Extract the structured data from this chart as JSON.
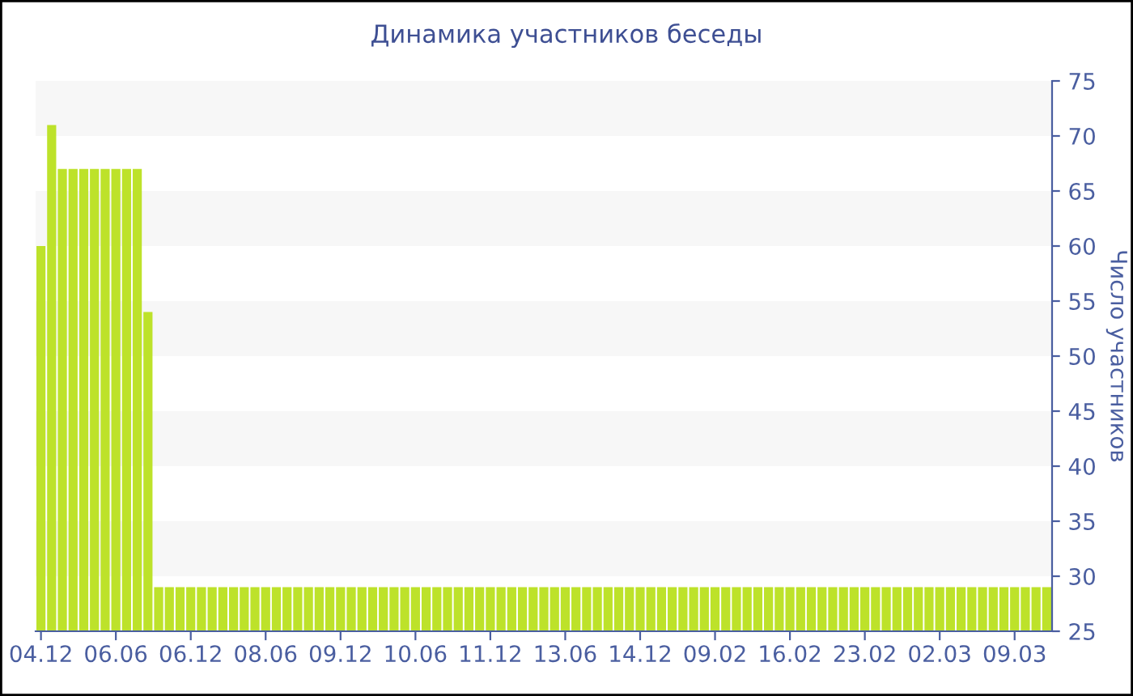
{
  "chart_data": {
    "type": "bar",
    "title": "Динамика участников беседы",
    "ylabel": "Число участников",
    "categories": [
      "04.12",
      null,
      null,
      null,
      null,
      null,
      null,
      "06.06",
      null,
      null,
      null,
      null,
      null,
      null,
      "06.12",
      null,
      null,
      null,
      null,
      null,
      null,
      "08.06",
      null,
      null,
      null,
      null,
      null,
      null,
      "09.12",
      null,
      null,
      null,
      null,
      null,
      null,
      "10.06",
      null,
      null,
      null,
      null,
      null,
      null,
      "11.12",
      null,
      null,
      null,
      null,
      null,
      null,
      "13.06",
      null,
      null,
      null,
      null,
      null,
      null,
      "14.12",
      null,
      null,
      null,
      null,
      null,
      null,
      "09.02",
      null,
      null,
      null,
      null,
      null,
      null,
      "16.02",
      null,
      null,
      null,
      null,
      null,
      null,
      "23.02",
      null,
      null,
      null,
      null,
      null,
      null,
      "02.03",
      null,
      null,
      null,
      null,
      null,
      null,
      "09.03",
      null,
      null,
      null
    ],
    "values": [
      60,
      71,
      67,
      67,
      67,
      67,
      67,
      67,
      67,
      67,
      54,
      29,
      29,
      29,
      29,
      29,
      29,
      29,
      29,
      29,
      29,
      29,
      29,
      29,
      29,
      29,
      29,
      29,
      29,
      29,
      29,
      29,
      29,
      29,
      29,
      29,
      29,
      29,
      29,
      29,
      29,
      29,
      29,
      29,
      29,
      29,
      29,
      29,
      29,
      29,
      29,
      29,
      29,
      29,
      29,
      29,
      29,
      29,
      29,
      29,
      29,
      29,
      29,
      29,
      29,
      29,
      29,
      29,
      29,
      29,
      29,
      29,
      29,
      29,
      29,
      29,
      29,
      29,
      29,
      29,
      29,
      29,
      29,
      29,
      29,
      29,
      29,
      29,
      29,
      29,
      29,
      29,
      29,
      29,
      29
    ],
    "color": "#bde22a",
    "ylim": [
      25,
      75
    ],
    "yticks": [
      25,
      30,
      35,
      40,
      45,
      50,
      55,
      60,
      65,
      70,
      75
    ],
    "bands": [
      {
        "axis": "y",
        "from": 30,
        "to": 35,
        "color": "#f7f7f7"
      },
      {
        "axis": "y",
        "from": 40,
        "to": 45,
        "color": "#f7f7f7"
      },
      {
        "axis": "y",
        "from": 50,
        "to": 55,
        "color": "#f7f7f7"
      },
      {
        "axis": "y",
        "from": 60,
        "to": 65,
        "color": "#f7f7f7"
      },
      {
        "axis": "y",
        "from": 70,
        "to": 75,
        "color": "#f7f7f7"
      }
    ],
    "grid": false
  }
}
